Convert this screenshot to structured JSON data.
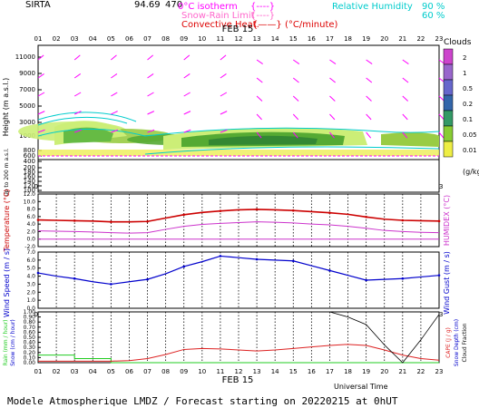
{
  "header": {
    "station": "SIRTA",
    "coords": "94.69",
    "coord_fragment": "470",
    "legend_isotherm": "0°C isotherm",
    "legend_snow_rain": "Snow-Rain Limit",
    "legend_convective": "Convective Heat.",
    "legend_unit": "(°C/minute)",
    "rh_label": "Relative Humidity",
    "rh_values": [
      "90 %",
      "60 %"
    ]
  },
  "hours": [
    "01",
    "02",
    "03",
    "04",
    "05",
    "06",
    "07",
    "08",
    "09",
    "10",
    "11",
    "12",
    "13",
    "14",
    "15",
    "16",
    "17",
    "18",
    "19",
    "20",
    "21",
    "22",
    "23"
  ],
  "date_label": "FEB 15",
  "footer": {
    "universal_time": "Universal Time",
    "title": "Modele Atmospherique LMDZ / Forecast starting on 20220215 at 0hUT"
  },
  "colors": {
    "temperature": "#cc0000",
    "humidex": "#cc33cc",
    "wind": "#0000cc",
    "wind_gust": "#000000",
    "rain": "#22cc22",
    "cape": "#dd2222",
    "cloud_fraction": "#000000",
    "wind_arrow": "#ff00ff",
    "rh_contour": "#00cccc"
  },
  "chart_data": [
    {
      "type": "heatmap",
      "panel": "clouds",
      "ylabel": "Height (m a.s.l.)",
      "ylabel2": "Up to 200 m a.s.l.",
      "y_ticks": [
        "11000",
        "9000",
        "7000",
        "5000",
        "3000",
        "1000",
        "800",
        "600",
        "400",
        "200",
        "180",
        "160",
        "140",
        "120",
        "100"
      ],
      "legend_title": "Clouds",
      "legend_levels": [
        "2",
        "1",
        "0.5",
        "0.2",
        "0.1",
        "0.05",
        "0.01"
      ],
      "legend_unit": "(g/kg)"
    },
    {
      "type": "line",
      "panel": "temperature",
      "ylabel": "Temperature (°C)",
      "ylabel2": "HUMIDEX (°C)",
      "ylim": [
        -2,
        12
      ],
      "y_ticks": [
        "12.0",
        "10.0",
        "8.0",
        "6.0",
        "4.0",
        "2.0",
        "0.0",
        "-2.0"
      ],
      "series": [
        {
          "name": "Temperature",
          "values": [
            5.1,
            5.0,
            4.9,
            4.8,
            4.6,
            4.6,
            4.7,
            5.6,
            6.5,
            7.1,
            7.5,
            7.8,
            7.9,
            7.8,
            7.6,
            7.3,
            7.0,
            6.6,
            5.9,
            5.3,
            5.0,
            4.9,
            4.8
          ]
        },
        {
          "name": "HUMIDEX",
          "values": [
            2.2,
            2.1,
            2.0,
            1.9,
            1.7,
            1.6,
            1.7,
            2.6,
            3.4,
            3.9,
            4.2,
            4.4,
            4.6,
            4.5,
            4.3,
            4.0,
            3.8,
            3.4,
            2.9,
            2.3,
            2.0,
            1.8,
            1.7
          ]
        }
      ]
    },
    {
      "type": "line",
      "panel": "wind",
      "ylabel": "Wind Speed (m / s)",
      "ylabel2": "Wind Gust (m / s)",
      "ylim": [
        0,
        7
      ],
      "y_ticks": [
        "7.0",
        "6.0",
        "5.0",
        "4.0",
        "3.0",
        "2.0",
        "1.0",
        "0.0"
      ],
      "series": [
        {
          "name": "Wind Speed",
          "values": [
            4.4,
            4.0,
            3.7,
            3.3,
            3.0,
            3.3,
            3.6,
            4.3,
            5.2,
            5.8,
            6.5,
            6.3,
            6.1,
            6.0,
            5.9,
            5.3,
            4.7,
            4.1,
            3.5,
            3.6,
            3.7,
            3.9,
            4.1
          ]
        }
      ]
    },
    {
      "type": "line",
      "panel": "precipitation",
      "ylabel": "Rain (mm / hour)",
      "ylabel_b": "Snow (cm / hour)",
      "ylabel2": "CAPE (J / g)",
      "ylabel2_b": "Snow Depth (cm)",
      "ylabel2_c": "Cloud Fraction",
      "ylim": [
        0,
        1
      ],
      "y_ticks": [
        "1.00",
        "0.90",
        "0.80",
        "0.70",
        "0.60",
        "0.50",
        "0.40",
        "0.30",
        "0.20",
        "0.10",
        "0.00"
      ],
      "series": [
        {
          "name": "Rain",
          "values": [
            0.15,
            0.15,
            0.08,
            0.08,
            0.0,
            0.0,
            0.0,
            0.0,
            0.0,
            0.0,
            0.0,
            0.0,
            0.0,
            0.0,
            0.0,
            0.0,
            0.0,
            0.0,
            0.0,
            0.0,
            0.0,
            0.0,
            0.0
          ]
        },
        {
          "name": "CAPE",
          "values": [
            0.03,
            0.03,
            0.03,
            0.03,
            0.03,
            0.04,
            0.08,
            0.16,
            0.26,
            0.28,
            0.27,
            0.25,
            0.23,
            0.25,
            0.28,
            0.31,
            0.34,
            0.36,
            0.34,
            0.25,
            0.15,
            0.08,
            0.05
          ]
        },
        {
          "name": "Cloud Fraction",
          "values": [
            1.0,
            1.0,
            1.0,
            1.0,
            1.0,
            1.0,
            1.0,
            1.0,
            1.0,
            1.0,
            1.0,
            1.0,
            1.0,
            1.0,
            1.0,
            1.0,
            1.0,
            0.9,
            0.75,
            0.35,
            0.0,
            0.45,
            0.95
          ]
        }
      ]
    }
  ]
}
